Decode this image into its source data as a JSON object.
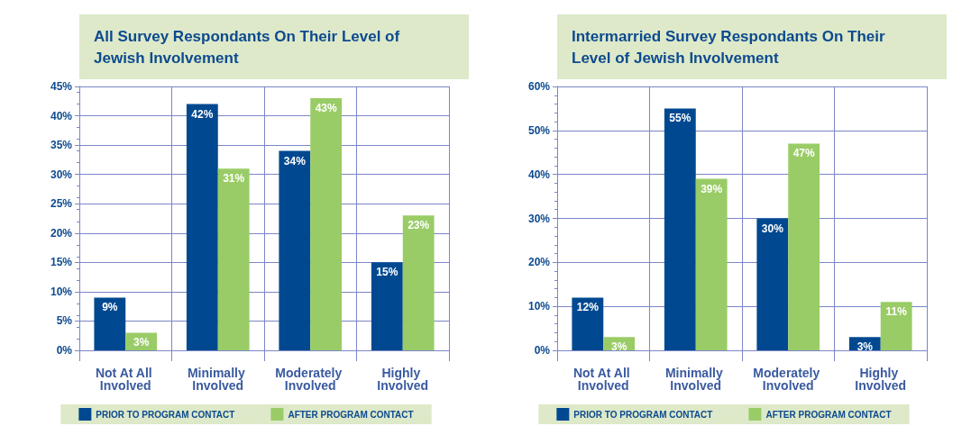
{
  "chart_data": [
    {
      "type": "bar",
      "title": "All Survey Respondants On Their Level of Jewish Involvement",
      "categories": [
        "Not At All Involved",
        "Minimally Involved",
        "Moderately Involved",
        "Highly Involved"
      ],
      "series": [
        {
          "name": "PRIOR TO PROGRAM CONTACT",
          "color": "#004990",
          "values": [
            9,
            42,
            34,
            15
          ],
          "value_labels": [
            "9%",
            "42%",
            "34%",
            "15%"
          ]
        },
        {
          "name": "AFTER PROGRAM CONTACT",
          "color": "#99cc66",
          "values": [
            3,
            31,
            43,
            23
          ],
          "value_labels": [
            "3%",
            "31%",
            "43%",
            "23%"
          ]
        }
      ],
      "ylim": [
        0,
        45
      ],
      "yticks": [
        {
          "value": 0,
          "label": "0%"
        },
        {
          "value": 5,
          "label": "5%"
        },
        {
          "value": 10,
          "label": "10%"
        },
        {
          "value": 15,
          "label": "15%"
        },
        {
          "value": 20,
          "label": "20%"
        },
        {
          "value": 25,
          "label": "25%"
        },
        {
          "value": 30,
          "label": "30%"
        },
        {
          "value": 35,
          "label": "35%"
        },
        {
          "value": 40,
          "label": "40%"
        },
        {
          "value": 45,
          "label": "45%"
        }
      ],
      "grid": true,
      "legend": "bottom"
    },
    {
      "type": "bar",
      "title": "Intermarried Survey Respondants On Their Level of Jewish Involvement",
      "categories": [
        "Not At All Involved",
        "Minimally Involved",
        "Moderately Involved",
        "Highly Involved"
      ],
      "series": [
        {
          "name": "PRIOR TO PROGRAM CONTACT",
          "color": "#004990",
          "values": [
            12,
            55,
            30,
            3
          ],
          "value_labels": [
            "12%",
            "55%",
            "30%",
            "3%"
          ]
        },
        {
          "name": "AFTER PROGRAM CONTACT",
          "color": "#99cc66",
          "values": [
            3,
            39,
            47,
            11
          ],
          "value_labels": [
            "3%",
            "39%",
            "47%",
            "11%"
          ]
        }
      ],
      "ylim": [
        0,
        60
      ],
      "yticks": [
        {
          "value": 0,
          "label": "0%"
        },
        {
          "value": 10,
          "label": "10%"
        },
        {
          "value": 20,
          "label": "20%"
        },
        {
          "value": 30,
          "label": "30%"
        },
        {
          "value": 40,
          "label": "40%"
        },
        {
          "value": 50,
          "label": "50%"
        },
        {
          "value": 60,
          "label": "60%"
        }
      ],
      "grid": true,
      "legend": "bottom"
    }
  ]
}
